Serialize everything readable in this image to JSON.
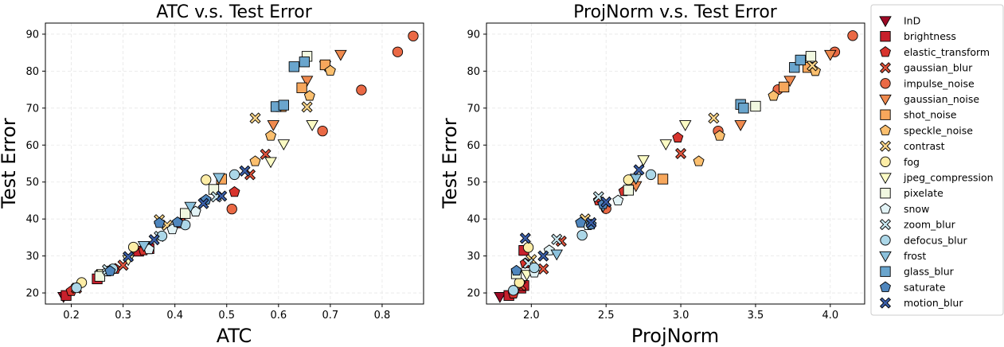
{
  "legend": {
    "entries": [
      {
        "label": "InD",
        "marker": "triangle-down",
        "color": "#9e0a26"
      },
      {
        "label": "brightness",
        "marker": "square",
        "color": "#c8202c"
      },
      {
        "label": "elastic_transform",
        "marker": "pentagon",
        "color": "#d8342e"
      },
      {
        "label": "gaussian_blur",
        "marker": "x",
        "color": "#e0533c"
      },
      {
        "label": "impulse_noise",
        "marker": "circle",
        "color": "#ea6945"
      },
      {
        "label": "gaussian_noise",
        "marker": "triangle-down",
        "color": "#f08a4e"
      },
      {
        "label": "shot_noise",
        "marker": "square",
        "color": "#f7a75c"
      },
      {
        "label": "speckle_noise",
        "marker": "pentagon",
        "color": "#fbbf6e"
      },
      {
        "label": "contrast",
        "marker": "x",
        "color": "#fdd68a"
      },
      {
        "label": "fog",
        "marker": "circle",
        "color": "#fdeda6"
      },
      {
        "label": "jpeg_compression",
        "marker": "triangle-down",
        "color": "#fbfbc4"
      },
      {
        "label": "pixelate",
        "marker": "square",
        "color": "#f1f8e0"
      },
      {
        "label": "snow",
        "marker": "pentagon",
        "color": "#e2f3f6"
      },
      {
        "label": "zoom_blur",
        "marker": "x",
        "color": "#c9e8f1"
      },
      {
        "label": "defocus_blur",
        "marker": "circle",
        "color": "#acd7e8"
      },
      {
        "label": "frost",
        "marker": "triangle-down",
        "color": "#8cc2dd"
      },
      {
        "label": "glass_blur",
        "marker": "square",
        "color": "#6aa5cd"
      },
      {
        "label": "saturate",
        "marker": "pentagon",
        "color": "#4f86bd"
      },
      {
        "label": "motion_blur",
        "marker": "x",
        "color": "#3a5ea8"
      }
    ]
  },
  "chart_data": [
    {
      "type": "scatter",
      "title": "ATC v.s. Test Error",
      "xlabel": "ATC",
      "ylabel": "Test Error",
      "xlim": [
        0.15,
        0.88
      ],
      "ylim": [
        17,
        93
      ],
      "xticks": [
        "0.2",
        "0.3",
        "0.4",
        "0.5",
        "0.6",
        "0.7",
        "0.8"
      ],
      "xtick_values": [
        0.2,
        0.3,
        0.4,
        0.5,
        0.6,
        0.7,
        0.8
      ],
      "yticks": [
        "20",
        "30",
        "40",
        "50",
        "60",
        "70",
        "80",
        "90"
      ],
      "ytick_values": [
        20,
        30,
        40,
        50,
        60,
        70,
        80,
        90
      ],
      "grid": true,
      "series": [
        {
          "name": "InD",
          "points": [
            [
              0.185,
              19.0
            ]
          ]
        },
        {
          "name": "brightness",
          "points": [
            [
              0.19,
              19.3
            ],
            [
              0.25,
              23.8
            ],
            [
              0.33,
              31.3
            ],
            [
              0.35,
              32.0
            ]
          ]
        },
        {
          "name": "elastic_transform",
          "points": [
            [
              0.2,
              20.5
            ],
            [
              0.285,
              26.5
            ],
            [
              0.34,
              31.5
            ],
            [
              0.41,
              38.8
            ],
            [
              0.515,
              47.3
            ]
          ]
        },
        {
          "name": "gaussian_blur",
          "points": [
            [
              0.21,
              21.3
            ],
            [
              0.3,
              27.5
            ],
            [
              0.41,
              39.0
            ],
            [
              0.545,
              52.0
            ],
            [
              0.575,
              57.5
            ]
          ]
        },
        {
          "name": "impulse_noise",
          "points": [
            [
              0.51,
              42.7
            ],
            [
              0.685,
              63.8
            ],
            [
              0.76,
              74.9
            ],
            [
              0.83,
              85.2
            ],
            [
              0.86,
              89.5
            ]
          ]
        },
        {
          "name": "gaussian_noise",
          "points": [
            [
              0.59,
              65.5
            ],
            [
              0.655,
              77.5
            ],
            [
              0.69,
              81.5
            ],
            [
              0.72,
              84.5
            ]
          ]
        },
        {
          "name": "shot_noise",
          "points": [
            [
              0.49,
              50.8
            ],
            [
              0.605,
              70.4
            ],
            [
              0.645,
              75.5
            ],
            [
              0.69,
              81.7
            ]
          ]
        },
        {
          "name": "speckle_noise",
          "points": [
            [
              0.555,
              55.6
            ],
            [
              0.585,
              62.5
            ],
            [
              0.66,
              73.3
            ],
            [
              0.7,
              80.1
            ]
          ]
        },
        {
          "name": "contrast",
          "points": [
            [
              0.255,
              24.8
            ],
            [
              0.37,
              39.8
            ],
            [
              0.385,
              38.3
            ],
            [
              0.555,
              67.3
            ],
            [
              0.655,
              70.3
            ]
          ]
        },
        {
          "name": "fog",
          "points": [
            [
              0.22,
              22.8
            ],
            [
              0.32,
              32.4
            ],
            [
              0.46,
              50.6
            ]
          ]
        },
        {
          "name": "jpeg_compression",
          "points": [
            [
              0.26,
              25.2
            ],
            [
              0.31,
              29.0
            ],
            [
              0.585,
              55.5
            ],
            [
              0.61,
              60.3
            ],
            [
              0.665,
              65.5
            ]
          ]
        },
        {
          "name": "pixelate",
          "points": [
            [
              0.255,
              24.5
            ],
            [
              0.42,
              41.5
            ],
            [
              0.475,
              48.0
            ],
            [
              0.655,
              84.0
            ]
          ]
        },
        {
          "name": "snow",
          "points": [
            [
              0.27,
              25.8
            ],
            [
              0.35,
              31.8
            ],
            [
              0.395,
              37.2
            ],
            [
              0.44,
              42.0
            ]
          ]
        },
        {
          "name": "zoom_blur",
          "points": [
            [
              0.27,
              26.3
            ],
            [
              0.37,
              35.3
            ],
            [
              0.48,
              46.0
            ]
          ]
        },
        {
          "name": "defocus_blur",
          "points": [
            [
              0.21,
              21.4
            ],
            [
              0.28,
              26.5
            ],
            [
              0.375,
              35.4
            ],
            [
              0.42,
              38.4
            ],
            [
              0.515,
              52.0
            ]
          ]
        },
        {
          "name": "frost",
          "points": [
            [
              0.34,
              32.8
            ],
            [
              0.43,
              43.4
            ],
            [
              0.485,
              51.2
            ]
          ]
        },
        {
          "name": "glass_blur",
          "points": [
            [
              0.595,
              70.4
            ],
            [
              0.61,
              70.8
            ],
            [
              0.63,
              81.2
            ],
            [
              0.65,
              82.5
            ]
          ]
        },
        {
          "name": "saturate",
          "points": [
            [
              0.275,
              25.9
            ],
            [
              0.37,
              38.9
            ],
            [
              0.405,
              39.1
            ],
            [
              0.46,
              45.2
            ]
          ]
        },
        {
          "name": "motion_blur",
          "points": [
            [
              0.31,
              29.8
            ],
            [
              0.36,
              34.4
            ],
            [
              0.455,
              44.2
            ],
            [
              0.49,
              46.2
            ],
            [
              0.535,
              53.0
            ]
          ]
        }
      ]
    },
    {
      "type": "scatter",
      "title": "ProjNorm v.s. Test Error",
      "xlabel": "ProjNorm",
      "ylabel": "Test Error",
      "xlim": [
        1.7,
        4.23
      ],
      "ylim": [
        17,
        93
      ],
      "xticks": [
        "2.0",
        "2.5",
        "3.0",
        "3.5",
        "4.0"
      ],
      "xtick_values": [
        2.0,
        2.5,
        3.0,
        3.5,
        4.0
      ],
      "yticks": [
        "20",
        "30",
        "40",
        "50",
        "60",
        "70",
        "80",
        "90"
      ],
      "ytick_values": [
        20,
        30,
        40,
        50,
        60,
        70,
        80,
        90
      ],
      "grid": true,
      "series": [
        {
          "name": "InD",
          "points": [
            [
              1.79,
              19.0
            ]
          ]
        },
        {
          "name": "brightness",
          "points": [
            [
              1.85,
              19.3
            ],
            [
              1.93,
              21.3
            ],
            [
              1.95,
              22.0
            ],
            [
              1.95,
              31.5
            ]
          ]
        },
        {
          "name": "elastic_transform",
          "points": [
            [
              1.88,
              19.8
            ],
            [
              1.96,
              28.0
            ],
            [
              2.45,
              45.0
            ],
            [
              2.62,
              47.5
            ],
            [
              2.98,
              62.0
            ]
          ]
        },
        {
          "name": "gaussian_blur",
          "points": [
            [
              1.93,
              22.0
            ],
            [
              2.08,
              26.5
            ],
            [
              2.2,
              34.0
            ],
            [
              3.0,
              57.7
            ]
          ]
        },
        {
          "name": "impulse_noise",
          "points": [
            [
              2.5,
              42.8
            ],
            [
              3.25,
              63.8
            ],
            [
              3.65,
              75.0
            ],
            [
              4.03,
              85.2
            ],
            [
              4.15,
              89.6
            ]
          ]
        },
        {
          "name": "gaussian_noise",
          "points": [
            [
              2.7,
              49.0
            ],
            [
              3.4,
              65.5
            ],
            [
              3.73,
              77.5
            ],
            [
              4.0,
              84.5
            ]
          ]
        },
        {
          "name": "shot_noise",
          "points": [
            [
              2.88,
              50.8
            ],
            [
              3.69,
              75.7
            ],
            [
              3.85,
              81.0
            ]
          ]
        },
        {
          "name": "speckle_noise",
          "points": [
            [
              3.12,
              55.6
            ],
            [
              3.26,
              62.5
            ],
            [
              3.62,
              73.3
            ],
            [
              3.9,
              80.0
            ]
          ]
        },
        {
          "name": "contrast",
          "points": [
            [
              2.0,
              29.0
            ],
            [
              2.36,
              40.0
            ],
            [
              3.22,
              67.3
            ],
            [
              3.88,
              81.5
            ]
          ]
        },
        {
          "name": "fog",
          "points": [
            [
              1.92,
              22.8
            ],
            [
              1.98,
              32.3
            ],
            [
              2.65,
              50.6
            ]
          ]
        },
        {
          "name": "jpeg_compression",
          "points": [
            [
              1.97,
              25.0
            ],
            [
              2.75,
              56.0
            ],
            [
              2.9,
              60.3
            ],
            [
              3.03,
              65.5
            ]
          ]
        },
        {
          "name": "pixelate",
          "points": [
            [
              1.9,
              25.2
            ],
            [
              2.65,
              47.8
            ],
            [
              3.5,
              70.5
            ],
            [
              3.87,
              84.0
            ]
          ]
        },
        {
          "name": "snow",
          "points": [
            [
              2.02,
              25.5
            ],
            [
              2.12,
              31.5
            ],
            [
              2.38,
              38.3
            ],
            [
              2.58,
              45.0
            ]
          ]
        },
        {
          "name": "zoom_blur",
          "points": [
            [
              1.98,
              28.0
            ],
            [
              2.17,
              34.5
            ],
            [
              2.45,
              46.0
            ]
          ]
        },
        {
          "name": "defocus_blur",
          "points": [
            [
              1.88,
              20.7
            ],
            [
              2.02,
              26.8
            ],
            [
              2.34,
              35.6
            ],
            [
              2.8,
              52.0
            ]
          ]
        },
        {
          "name": "frost",
          "points": [
            [
              2.17,
              30.5
            ],
            [
              2.48,
              43.5
            ],
            [
              2.7,
              51.0
            ]
          ]
        },
        {
          "name": "glass_blur",
          "points": [
            [
              3.4,
              71.0
            ],
            [
              3.42,
              70.0
            ],
            [
              3.76,
              81.0
            ],
            [
              3.8,
              83.0
            ]
          ]
        },
        {
          "name": "saturate",
          "points": [
            [
              1.9,
              26.0
            ],
            [
              2.33,
              39.0
            ],
            [
              2.4,
              38.5
            ],
            [
              2.48,
              44.0
            ]
          ]
        },
        {
          "name": "motion_blur",
          "points": [
            [
              1.96,
              34.8
            ],
            [
              2.08,
              30.0
            ],
            [
              2.4,
              39.0
            ],
            [
              2.5,
              44.6
            ],
            [
              2.72,
              53.3
            ]
          ]
        }
      ]
    }
  ]
}
